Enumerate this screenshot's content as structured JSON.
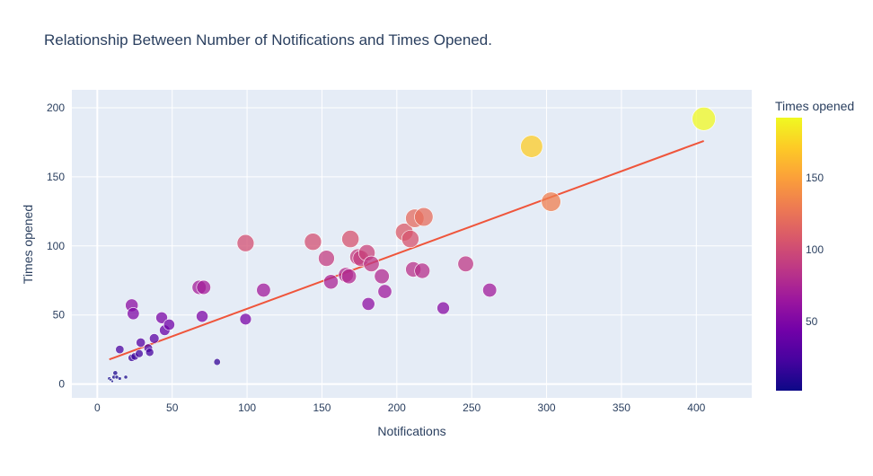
{
  "chart_data": {
    "type": "scatter",
    "title": "Relationship Between Number of Notifications and Times Opened.",
    "xlabel": "Notifications",
    "ylabel": "Times opened",
    "xlim": [
      -17,
      437
    ],
    "ylim": [
      -10,
      213
    ],
    "x_ticks": [
      0,
      50,
      100,
      150,
      200,
      250,
      300,
      350,
      400
    ],
    "y_ticks": [
      0,
      50,
      100,
      150,
      200
    ],
    "grid": true,
    "background": "#e5ecf6",
    "colorbar": {
      "title": "Times opened",
      "min": 2,
      "max": 192,
      "ticks": [
        50,
        100,
        150
      ],
      "colorscale": [
        "#0d0887",
        "#46039f",
        "#7201a8",
        "#9c179e",
        "#bd3786",
        "#d8576b",
        "#ed7953",
        "#fb9f3a",
        "#fdca26",
        "#f0f921"
      ]
    },
    "points": [
      {
        "x": 8,
        "y": 4
      },
      {
        "x": 9,
        "y": 3
      },
      {
        "x": 10,
        "y": 2
      },
      {
        "x": 11,
        "y": 5
      },
      {
        "x": 12,
        "y": 8
      },
      {
        "x": 13,
        "y": 5
      },
      {
        "x": 15,
        "y": 4
      },
      {
        "x": 15,
        "y": 25
      },
      {
        "x": 19,
        "y": 5
      },
      {
        "x": 23,
        "y": 57
      },
      {
        "x": 23,
        "y": 19
      },
      {
        "x": 24,
        "y": 51
      },
      {
        "x": 25,
        "y": 20
      },
      {
        "x": 28,
        "y": 22
      },
      {
        "x": 29,
        "y": 30
      },
      {
        "x": 34,
        "y": 26
      },
      {
        "x": 35,
        "y": 23
      },
      {
        "x": 38,
        "y": 33
      },
      {
        "x": 43,
        "y": 48
      },
      {
        "x": 45,
        "y": 39
      },
      {
        "x": 48,
        "y": 43
      },
      {
        "x": 68,
        "y": 70
      },
      {
        "x": 70,
        "y": 49
      },
      {
        "x": 71,
        "y": 70
      },
      {
        "x": 80,
        "y": 16
      },
      {
        "x": 99,
        "y": 102
      },
      {
        "x": 99,
        "y": 47
      },
      {
        "x": 111,
        "y": 68
      },
      {
        "x": 144,
        "y": 103
      },
      {
        "x": 153,
        "y": 91
      },
      {
        "x": 156,
        "y": 74
      },
      {
        "x": 166,
        "y": 79
      },
      {
        "x": 168,
        "y": 78
      },
      {
        "x": 169,
        "y": 105
      },
      {
        "x": 174,
        "y": 92
      },
      {
        "x": 176,
        "y": 91
      },
      {
        "x": 180,
        "y": 95
      },
      {
        "x": 181,
        "y": 58
      },
      {
        "x": 183,
        "y": 87
      },
      {
        "x": 190,
        "y": 78
      },
      {
        "x": 192,
        "y": 67
      },
      {
        "x": 205,
        "y": 110
      },
      {
        "x": 209,
        "y": 105
      },
      {
        "x": 211,
        "y": 83
      },
      {
        "x": 212,
        "y": 120
      },
      {
        "x": 217,
        "y": 82
      },
      {
        "x": 218,
        "y": 121
      },
      {
        "x": 231,
        "y": 55
      },
      {
        "x": 246,
        "y": 87
      },
      {
        "x": 262,
        "y": 68
      },
      {
        "x": 290,
        "y": 172
      },
      {
        "x": 303,
        "y": 132
      },
      {
        "x": 405,
        "y": 192
      }
    ],
    "trendline": {
      "x": [
        8,
        405
      ],
      "y": [
        17.8,
        176
      ],
      "color": "#ef553b"
    }
  }
}
